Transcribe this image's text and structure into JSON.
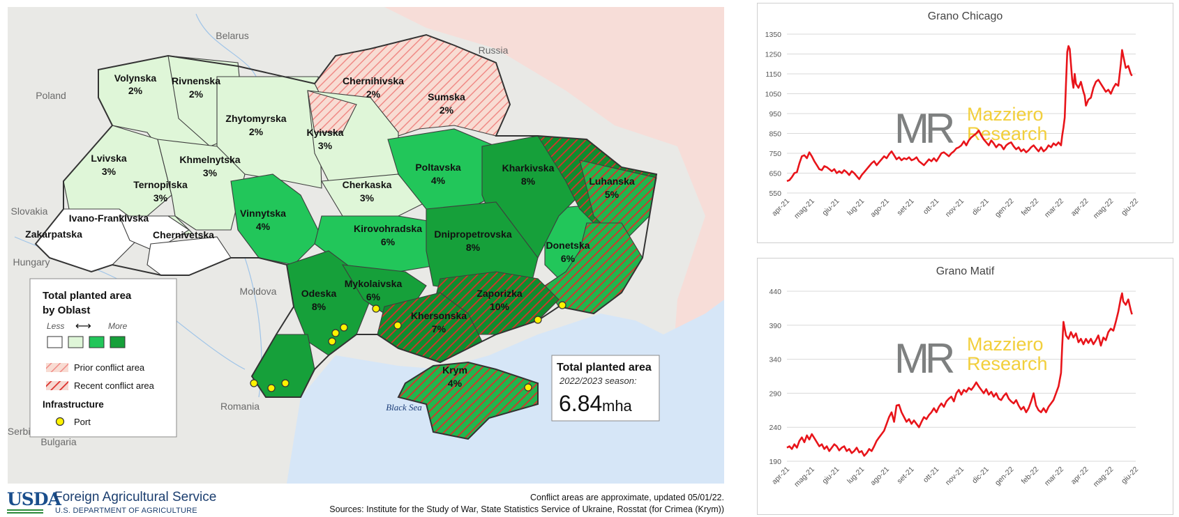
{
  "map": {
    "countries": [
      "Belarus",
      "Russia",
      "Poland",
      "Slovakia",
      "Hungary",
      "Moldova",
      "Romania",
      "Serbia",
      "Bulgaria"
    ],
    "sea": "Black Sea",
    "oblasts": [
      {
        "name": "Volynska",
        "pct": "2%",
        "level": 1
      },
      {
        "name": "Rivnenska",
        "pct": "2%",
        "level": 1
      },
      {
        "name": "Chernihivska",
        "pct": "2%",
        "level": 1,
        "conflict": "prior"
      },
      {
        "name": "Sumska",
        "pct": "2%",
        "level": 1,
        "conflict": "prior"
      },
      {
        "name": "Zhytomyrska",
        "pct": "2%",
        "level": 1
      },
      {
        "name": "Kyivska",
        "pct": "3%",
        "level": 1,
        "conflict": "prior"
      },
      {
        "name": "Lvivska",
        "pct": "3%",
        "level": 1
      },
      {
        "name": "Khmelnytska",
        "pct": "3%",
        "level": 1
      },
      {
        "name": "Ternopilska",
        "pct": "3%",
        "level": 1
      },
      {
        "name": "Ivano-Frankivska",
        "pct": "",
        "level": 0
      },
      {
        "name": "Zakarpatska",
        "pct": "",
        "level": 0
      },
      {
        "name": "Chernivetska",
        "pct": "",
        "level": 0
      },
      {
        "name": "Poltavska",
        "pct": "4%",
        "level": 2
      },
      {
        "name": "Kharkivska",
        "pct": "8%",
        "level": 3,
        "conflict": "recent"
      },
      {
        "name": "Luhanska",
        "pct": "5%",
        "level": 2,
        "conflict": "recent"
      },
      {
        "name": "Cherkaska",
        "pct": "3%",
        "level": 1
      },
      {
        "name": "Vinnytska",
        "pct": "4%",
        "level": 2
      },
      {
        "name": "Kirovohradska",
        "pct": "6%",
        "level": 2
      },
      {
        "name": "Dnipropetrovska",
        "pct": "8%",
        "level": 3
      },
      {
        "name": "Donetska",
        "pct": "6%",
        "level": 2,
        "conflict": "recent"
      },
      {
        "name": "Odeska",
        "pct": "8%",
        "level": 3
      },
      {
        "name": "Mykolaivska",
        "pct": "6%",
        "level": 3
      },
      {
        "name": "Zaporizka",
        "pct": "10%",
        "level": 3,
        "conflict": "recent"
      },
      {
        "name": "Khersonska",
        "pct": "7%",
        "level": 3,
        "conflict": "recent"
      },
      {
        "name": "Krym",
        "pct": "4%",
        "level": 2,
        "conflict": "recent"
      }
    ],
    "legend": {
      "title_line1": "Total planted area",
      "title_line2": "by Oblast",
      "less": "Less",
      "arrow": "⟷",
      "more": "More",
      "fill_colors": [
        "#ffffff",
        "#dff6d8",
        "#22c65a",
        "#16a03a"
      ],
      "prior_conflict": "Prior conflict area",
      "recent_conflict": "Recent conflict area",
      "infrastructure": "Infrastructure",
      "port": "Port"
    },
    "total_box": {
      "title": "Total planted area",
      "season": "2022/2023 season:",
      "value": "6.84",
      "unit": "mha"
    },
    "colors": {
      "land_neighbor": "#e8e8e6",
      "russia": "#f7ddd8",
      "sea": "#d6e6f7",
      "conflict_red": "#e0312a",
      "port": "#fff200"
    }
  },
  "footer": {
    "agency_logo": "USDA",
    "agency": "Foreign Agricultural Service",
    "department": "U.S. DEPARTMENT OF AGRICULTURE",
    "note": "Conflict areas are approximate, updated 05/01/22.",
    "sources": "Sources: Institute for the Study of War, State Statistics Service of Ukraine, Rosstat (for Crimea (Krym))"
  },
  "watermark": {
    "logo": "MR",
    "line1": "Mazziero",
    "line2": "Research"
  },
  "chart_data": [
    {
      "type": "line",
      "title": "Grano Chicago",
      "x": [
        "apr-21",
        "mag-21",
        "giu-21",
        "lug-21",
        "ago-21",
        "set-21",
        "ott-21",
        "nov-21",
        "dic-21",
        "gen-22",
        "feb-22",
        "mar-22",
        "apr-22",
        "mag-22",
        "giu-22"
      ],
      "ylim": [
        550,
        1350
      ],
      "yticks": [
        550,
        650,
        750,
        850,
        950,
        1050,
        1150,
        1250,
        1350
      ],
      "grid": true,
      "color": "#e8141a",
      "points": [
        [
          0,
          610
        ],
        [
          0.1,
          615
        ],
        [
          0.2,
          630
        ],
        [
          0.3,
          650
        ],
        [
          0.4,
          655
        ],
        [
          0.5,
          700
        ],
        [
          0.6,
          735
        ],
        [
          0.7,
          740
        ],
        [
          0.8,
          725
        ],
        [
          0.9,
          755
        ],
        [
          1.0,
          735
        ],
        [
          1.1,
          710
        ],
        [
          1.2,
          690
        ],
        [
          1.3,
          670
        ],
        [
          1.4,
          665
        ],
        [
          1.5,
          685
        ],
        [
          1.6,
          680
        ],
        [
          1.7,
          670
        ],
        [
          1.8,
          660
        ],
        [
          1.9,
          670
        ],
        [
          2.0,
          650
        ],
        [
          2.1,
          660
        ],
        [
          2.2,
          650
        ],
        [
          2.3,
          665
        ],
        [
          2.4,
          655
        ],
        [
          2.5,
          640
        ],
        [
          2.6,
          660
        ],
        [
          2.7,
          650
        ],
        [
          2.8,
          635
        ],
        [
          2.9,
          620
        ],
        [
          3.0,
          640
        ],
        [
          3.1,
          655
        ],
        [
          3.2,
          670
        ],
        [
          3.3,
          685
        ],
        [
          3.4,
          700
        ],
        [
          3.5,
          710
        ],
        [
          3.6,
          690
        ],
        [
          3.7,
          705
        ],
        [
          3.8,
          720
        ],
        [
          3.9,
          735
        ],
        [
          4.0,
          725
        ],
        [
          4.1,
          745
        ],
        [
          4.2,
          760
        ],
        [
          4.3,
          740
        ],
        [
          4.4,
          720
        ],
        [
          4.5,
          730
        ],
        [
          4.6,
          715
        ],
        [
          4.7,
          725
        ],
        [
          4.8,
          720
        ],
        [
          4.9,
          730
        ],
        [
          5.0,
          715
        ],
        [
          5.1,
          720
        ],
        [
          5.2,
          730
        ],
        [
          5.3,
          710
        ],
        [
          5.4,
          700
        ],
        [
          5.5,
          690
        ],
        [
          5.6,
          705
        ],
        [
          5.7,
          720
        ],
        [
          5.8,
          710
        ],
        [
          5.9,
          725
        ],
        [
          6.0,
          710
        ],
        [
          6.1,
          730
        ],
        [
          6.2,
          750
        ],
        [
          6.3,
          755
        ],
        [
          6.4,
          745
        ],
        [
          6.5,
          735
        ],
        [
          6.6,
          750
        ],
        [
          6.7,
          760
        ],
        [
          6.8,
          775
        ],
        [
          6.9,
          780
        ],
        [
          7.0,
          790
        ],
        [
          7.1,
          810
        ],
        [
          7.2,
          790
        ],
        [
          7.3,
          815
        ],
        [
          7.4,
          830
        ],
        [
          7.5,
          840
        ],
        [
          7.6,
          850
        ],
        [
          7.7,
          865
        ],
        [
          7.8,
          840
        ],
        [
          7.9,
          820
        ],
        [
          8.0,
          805
        ],
        [
          8.1,
          790
        ],
        [
          8.2,
          815
        ],
        [
          8.3,
          800
        ],
        [
          8.4,
          780
        ],
        [
          8.5,
          795
        ],
        [
          8.6,
          790
        ],
        [
          8.7,
          770
        ],
        [
          8.8,
          790
        ],
        [
          8.9,
          800
        ],
        [
          9.0,
          805
        ],
        [
          9.1,
          785
        ],
        [
          9.2,
          770
        ],
        [
          9.3,
          780
        ],
        [
          9.4,
          760
        ],
        [
          9.5,
          770
        ],
        [
          9.6,
          755
        ],
        [
          9.7,
          765
        ],
        [
          9.8,
          780
        ],
        [
          9.9,
          790
        ],
        [
          10.0,
          775
        ],
        [
          10.1,
          760
        ],
        [
          10.2,
          780
        ],
        [
          10.3,
          760
        ],
        [
          10.4,
          770
        ],
        [
          10.5,
          790
        ],
        [
          10.6,
          780
        ],
        [
          10.7,
          800
        ],
        [
          10.8,
          790
        ],
        [
          10.9,
          805
        ],
        [
          11.0,
          790
        ],
        [
          11.05,
          840
        ],
        [
          11.1,
          880
        ],
        [
          11.15,
          930
        ],
        [
          11.2,
          1100
        ],
        [
          11.25,
          1260
        ],
        [
          11.3,
          1290
        ],
        [
          11.35,
          1275
        ],
        [
          11.4,
          1200
        ],
        [
          11.45,
          1120
        ],
        [
          11.5,
          1080
        ],
        [
          11.55,
          1150
        ],
        [
          11.6,
          1100
        ],
        [
          11.7,
          1080
        ],
        [
          11.8,
          1110
        ],
        [
          11.9,
          1060
        ],
        [
          11.95,
          1040
        ],
        [
          12.0,
          990
        ],
        [
          12.1,
          1020
        ],
        [
          12.2,
          1030
        ],
        [
          12.3,
          1080
        ],
        [
          12.4,
          1110
        ],
        [
          12.5,
          1120
        ],
        [
          12.6,
          1100
        ],
        [
          12.7,
          1080
        ],
        [
          12.8,
          1060
        ],
        [
          12.9,
          1070
        ],
        [
          13.0,
          1050
        ],
        [
          13.1,
          1080
        ],
        [
          13.2,
          1100
        ],
        [
          13.3,
          1090
        ],
        [
          13.4,
          1200
        ],
        [
          13.45,
          1270
        ],
        [
          13.5,
          1240
        ],
        [
          13.6,
          1180
        ],
        [
          13.7,
          1190
        ],
        [
          13.8,
          1150
        ],
        [
          13.85,
          1140
        ]
      ]
    },
    {
      "type": "line",
      "title": "Grano Matif",
      "x": [
        "apr-21",
        "mag-21",
        "giu-21",
        "lug-21",
        "ago-21",
        "set-21",
        "ott-21",
        "nov-21",
        "dic-21",
        "gen-22",
        "feb-22",
        "mar-22",
        "apr-22",
        "mag-22",
        "giu-22"
      ],
      "ylim": [
        190,
        440
      ],
      "yticks": [
        190,
        240,
        290,
        340,
        390,
        440
      ],
      "grid": true,
      "color": "#e8141a",
      "points": [
        [
          0,
          210
        ],
        [
          0.1,
          212
        ],
        [
          0.2,
          208
        ],
        [
          0.3,
          215
        ],
        [
          0.4,
          210
        ],
        [
          0.5,
          220
        ],
        [
          0.6,
          225
        ],
        [
          0.7,
          218
        ],
        [
          0.8,
          228
        ],
        [
          0.9,
          222
        ],
        [
          1.0,
          230
        ],
        [
          1.1,
          224
        ],
        [
          1.2,
          218
        ],
        [
          1.3,
          212
        ],
        [
          1.4,
          215
        ],
        [
          1.5,
          208
        ],
        [
          1.6,
          212
        ],
        [
          1.7,
          205
        ],
        [
          1.8,
          210
        ],
        [
          1.9,
          215
        ],
        [
          2.0,
          212
        ],
        [
          2.1,
          206
        ],
        [
          2.2,
          210
        ],
        [
          2.3,
          212
        ],
        [
          2.4,
          205
        ],
        [
          2.5,
          208
        ],
        [
          2.6,
          202
        ],
        [
          2.7,
          205
        ],
        [
          2.8,
          210
        ],
        [
          2.9,
          203
        ],
        [
          3.0,
          205
        ],
        [
          3.1,
          198
        ],
        [
          3.2,
          202
        ],
        [
          3.3,
          208
        ],
        [
          3.4,
          205
        ],
        [
          3.5,
          212
        ],
        [
          3.6,
          220
        ],
        [
          3.7,
          225
        ],
        [
          3.8,
          230
        ],
        [
          3.9,
          235
        ],
        [
          4.0,
          245
        ],
        [
          4.1,
          255
        ],
        [
          4.2,
          262
        ],
        [
          4.3,
          248
        ],
        [
          4.4,
          272
        ],
        [
          4.5,
          273
        ],
        [
          4.6,
          262
        ],
        [
          4.7,
          255
        ],
        [
          4.8,
          248
        ],
        [
          4.9,
          252
        ],
        [
          5.0,
          245
        ],
        [
          5.1,
          250
        ],
        [
          5.2,
          245
        ],
        [
          5.3,
          240
        ],
        [
          5.4,
          248
        ],
        [
          5.5,
          255
        ],
        [
          5.6,
          252
        ],
        [
          5.7,
          258
        ],
        [
          5.8,
          262
        ],
        [
          5.9,
          268
        ],
        [
          6.0,
          262
        ],
        [
          6.1,
          270
        ],
        [
          6.2,
          275
        ],
        [
          6.3,
          270
        ],
        [
          6.4,
          278
        ],
        [
          6.5,
          282
        ],
        [
          6.6,
          285
        ],
        [
          6.7,
          278
        ],
        [
          6.8,
          290
        ],
        [
          6.9,
          295
        ],
        [
          7.0,
          288
        ],
        [
          7.1,
          295
        ],
        [
          7.2,
          292
        ],
        [
          7.3,
          298
        ],
        [
          7.4,
          295
        ],
        [
          7.5,
          300
        ],
        [
          7.6,
          306
        ],
        [
          7.7,
          300
        ],
        [
          7.8,
          295
        ],
        [
          7.9,
          290
        ],
        [
          8.0,
          296
        ],
        [
          8.1,
          288
        ],
        [
          8.2,
          292
        ],
        [
          8.3,
          285
        ],
        [
          8.4,
          290
        ],
        [
          8.5,
          282
        ],
        [
          8.6,
          280
        ],
        [
          8.7,
          286
        ],
        [
          8.8,
          290
        ],
        [
          8.9,
          282
        ],
        [
          9.0,
          278
        ],
        [
          9.1,
          275
        ],
        [
          9.2,
          280
        ],
        [
          9.3,
          272
        ],
        [
          9.4,
          266
        ],
        [
          9.5,
          270
        ],
        [
          9.6,
          262
        ],
        [
          9.7,
          268
        ],
        [
          9.8,
          278
        ],
        [
          9.9,
          290
        ],
        [
          10.0,
          272
        ],
        [
          10.1,
          265
        ],
        [
          10.2,
          262
        ],
        [
          10.3,
          268
        ],
        [
          10.4,
          262
        ],
        [
          10.5,
          270
        ],
        [
          10.6,
          275
        ],
        [
          10.7,
          280
        ],
        [
          10.8,
          290
        ],
        [
          10.9,
          300
        ],
        [
          11.0,
          320
        ],
        [
          11.05,
          360
        ],
        [
          11.1,
          395
        ],
        [
          11.15,
          385
        ],
        [
          11.2,
          375
        ],
        [
          11.3,
          370
        ],
        [
          11.4,
          380
        ],
        [
          11.5,
          372
        ],
        [
          11.6,
          378
        ],
        [
          11.7,
          365
        ],
        [
          11.8,
          370
        ],
        [
          11.9,
          362
        ],
        [
          12.0,
          370
        ],
        [
          12.1,
          364
        ],
        [
          12.2,
          370
        ],
        [
          12.3,
          362
        ],
        [
          12.4,
          368
        ],
        [
          12.5,
          375
        ],
        [
          12.6,
          360
        ],
        [
          12.7,
          372
        ],
        [
          12.8,
          368
        ],
        [
          12.9,
          380
        ],
        [
          13.0,
          385
        ],
        [
          13.1,
          382
        ],
        [
          13.2,
          395
        ],
        [
          13.3,
          410
        ],
        [
          13.4,
          430
        ],
        [
          13.45,
          437
        ],
        [
          13.5,
          425
        ],
        [
          13.6,
          420
        ],
        [
          13.7,
          428
        ],
        [
          13.8,
          412
        ],
        [
          13.85,
          406
        ]
      ]
    }
  ]
}
